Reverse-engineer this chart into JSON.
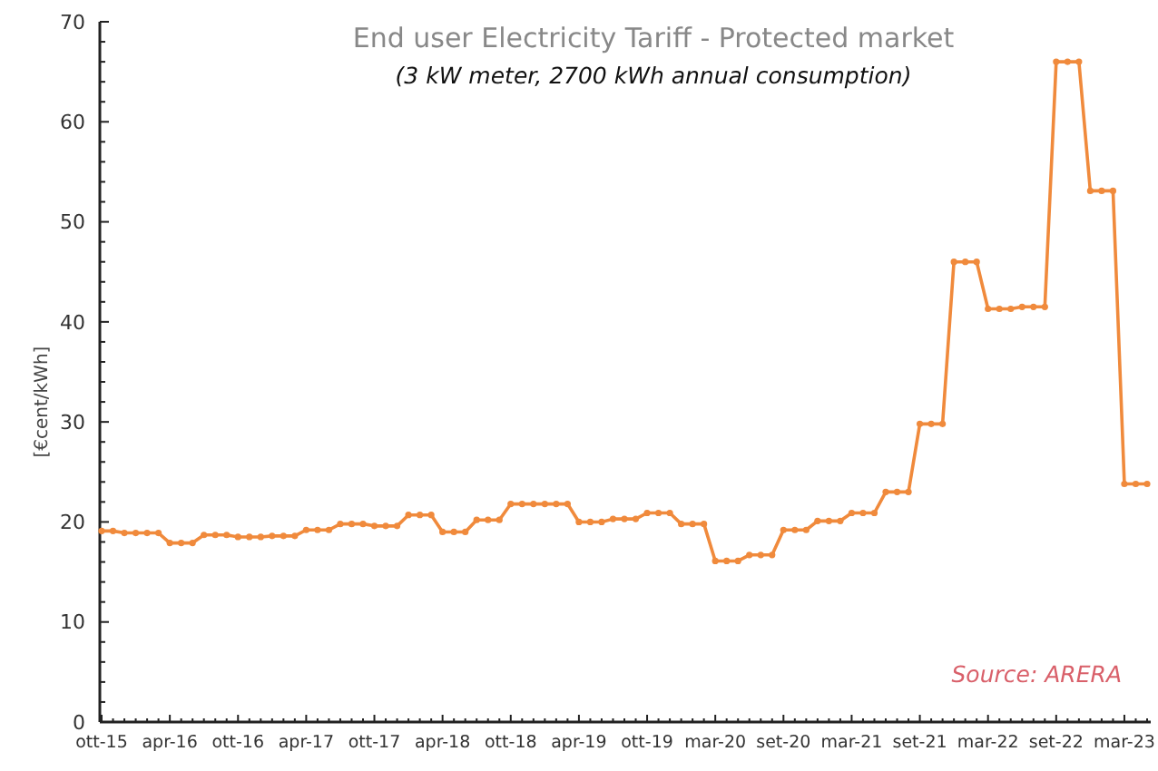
{
  "chart_data": {
    "type": "line",
    "title": "End user Electricity Tariff - Protected market",
    "subtitle": "(3 kW meter, 2700 kWh annual consumption)",
    "ylabel": "[€cent/kWh]",
    "annotations": [
      "Source: ARERA"
    ],
    "categories": [
      "ott-15",
      null,
      null,
      null,
      null,
      null,
      "apr-16",
      null,
      null,
      null,
      null,
      null,
      "ott-16",
      null,
      null,
      null,
      null,
      null,
      "apr-17",
      null,
      null,
      null,
      null,
      null,
      "ott-17",
      null,
      null,
      null,
      null,
      null,
      "apr-18",
      null,
      null,
      null,
      null,
      null,
      "ott-18",
      null,
      null,
      null,
      null,
      null,
      "apr-19",
      null,
      null,
      null,
      null,
      null,
      "ott-19",
      null,
      null,
      null,
      null,
      null,
      "mar-20",
      null,
      null,
      null,
      null,
      null,
      "set-20",
      null,
      null,
      null,
      null,
      null,
      "mar-21",
      null,
      null,
      null,
      null,
      null,
      "set-21",
      null,
      null,
      null,
      null,
      null,
      "mar-22",
      null,
      null,
      null,
      null,
      null,
      "set-22",
      null,
      null,
      null,
      null,
      null,
      "mar-23",
      null,
      null
    ],
    "series": [
      {
        "color": "#f08a3c",
        "values": [
          19.1,
          19.1,
          18.9,
          18.9,
          18.9,
          18.9,
          17.9,
          17.9,
          17.9,
          18.7,
          18.7,
          18.7,
          18.5,
          18.5,
          18.5,
          18.6,
          18.6,
          18.6,
          19.2,
          19.2,
          19.2,
          19.8,
          19.8,
          19.8,
          19.6,
          19.6,
          19.6,
          20.7,
          20.7,
          20.7,
          19.0,
          19.0,
          19.0,
          20.2,
          20.2,
          20.2,
          21.8,
          21.8,
          21.8,
          21.8,
          21.8,
          21.8,
          20.0,
          20.0,
          20.0,
          20.3,
          20.3,
          20.3,
          20.9,
          20.9,
          20.9,
          19.8,
          19.8,
          19.8,
          16.1,
          16.1,
          16.1,
          16.7,
          16.7,
          16.7,
          19.2,
          19.2,
          19.2,
          20.1,
          20.1,
          20.1,
          20.9,
          20.9,
          20.9,
          23.0,
          23.0,
          23.0,
          29.8,
          29.8,
          29.8,
          46.0,
          46.0,
          46.0,
          41.3,
          41.3,
          41.3,
          41.5,
          41.5,
          41.5,
          66.0,
          66.0,
          66.0,
          53.1,
          53.1,
          53.1,
          23.8,
          23.8,
          23.8
        ]
      }
    ],
    "ylim": [
      0,
      70
    ],
    "yticks": [
      0,
      {
        "value": 2,
        "label": null
      },
      {
        "value": 4,
        "label": null
      },
      {
        "value": 6,
        "label": null
      },
      {
        "value": 8,
        "label": null
      },
      10,
      {
        "value": 12,
        "label": null
      },
      {
        "value": 14,
        "label": null
      },
      {
        "value": 16,
        "label": null
      },
      {
        "value": 18,
        "label": null
      },
      20,
      {
        "value": 22,
        "label": null
      },
      {
        "value": 24,
        "label": null
      },
      {
        "value": 26,
        "label": null
      },
      {
        "value": 28,
        "label": null
      },
      30,
      {
        "value": 32,
        "label": null
      },
      {
        "value": 34,
        "label": null
      },
      {
        "value": 36,
        "label": null
      },
      {
        "value": 38,
        "label": null
      },
      40,
      {
        "value": 42,
        "label": null
      },
      {
        "value": 44,
        "label": null
      },
      {
        "value": 46,
        "label": null
      },
      {
        "value": 48,
        "label": null
      },
      50,
      {
        "value": 52,
        "label": null
      },
      {
        "value": 54,
        "label": null
      },
      {
        "value": 56,
        "label": null
      },
      {
        "value": 58,
        "label": null
      },
      60,
      {
        "value": 62,
        "label": null
      },
      {
        "value": 64,
        "label": null
      },
      {
        "value": 66,
        "label": null
      },
      {
        "value": 68,
        "label": null
      },
      70
    ],
    "grid": false,
    "marker": "circle",
    "line_style": "solid"
  }
}
